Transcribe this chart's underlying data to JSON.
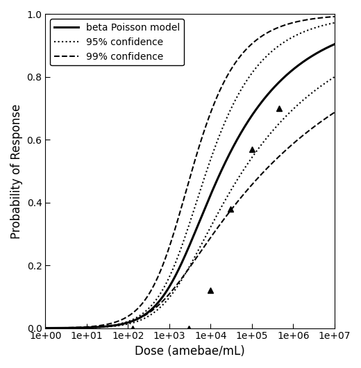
{
  "title": "",
  "xlabel": "Dose (amebae/mL)",
  "ylabel": "Probability of Response",
  "ylim": [
    0.0,
    1.0
  ],
  "alpha_bp": 0.265,
  "N50_bp": 18000,
  "alpha_upper99": 0.55,
  "N50_upper99": 3500,
  "alpha_upper95": 0.42,
  "N50_upper95": 8000,
  "alpha_lower95": 0.18,
  "N50_lower95": 60000,
  "alpha_lower99": 0.12,
  "N50_lower99": 200000,
  "data_doses": [
    130,
    3000,
    10000,
    30000,
    100000,
    450000
  ],
  "data_responses": [
    0.0,
    0.0,
    0.12,
    0.38,
    0.57,
    0.7
  ],
  "line_color": "#000000",
  "bg_color": "#ffffff",
  "yticks": [
    0.0,
    0.2,
    0.4,
    0.6,
    0.8,
    1.0
  ],
  "legend_loc": "upper left",
  "figwidth": 5.2,
  "figheight": 5.3,
  "dpi": 100
}
